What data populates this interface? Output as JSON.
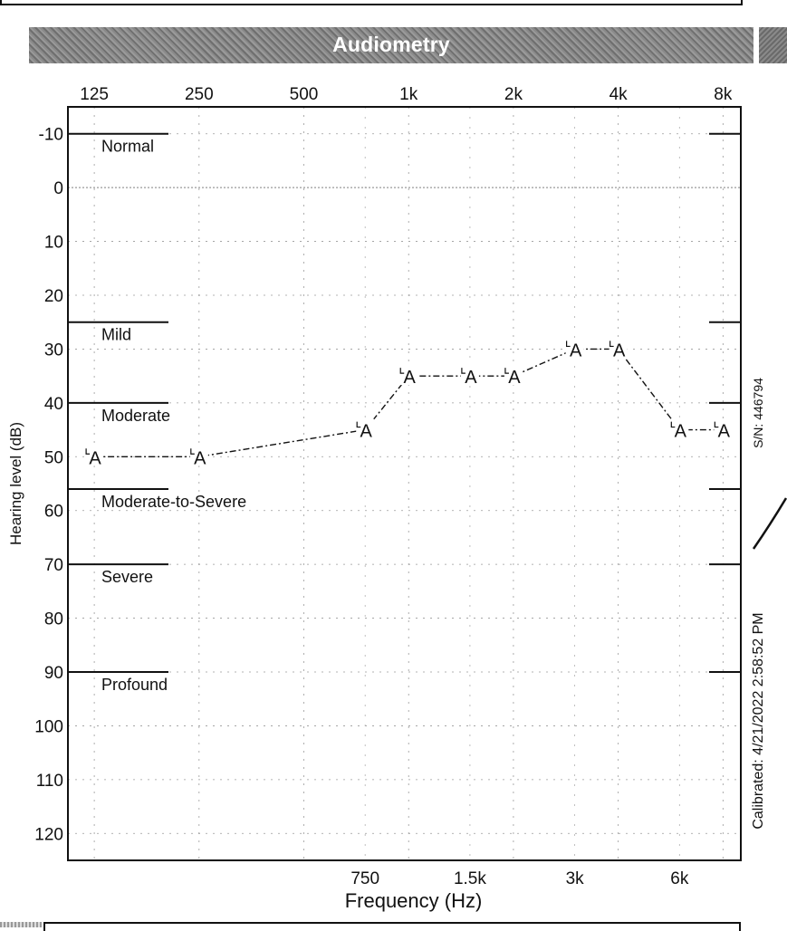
{
  "banner": {
    "title": "Audiometry"
  },
  "side_labels": {
    "serial": "S/N: 446794",
    "calibrated": "Calibrated: 4/21/2022 2:58:52 PM"
  },
  "chart_data": {
    "type": "line",
    "title": "Audiometry",
    "xlabel": "Frequency (Hz)",
    "ylabel": "Hearing level (dB)",
    "x_scale": "log",
    "xlim": [
      105,
      9000
    ],
    "ylim": [
      -15,
      125
    ],
    "y_inverted": true,
    "x_ticks_top": [
      {
        "hz": 125,
        "label": "125"
      },
      {
        "hz": 250,
        "label": "250"
      },
      {
        "hz": 500,
        "label": "500"
      },
      {
        "hz": 1000,
        "label": "1k"
      },
      {
        "hz": 2000,
        "label": "2k"
      },
      {
        "hz": 4000,
        "label": "4k"
      },
      {
        "hz": 8000,
        "label": "8k"
      }
    ],
    "x_ticks_bottom": [
      {
        "hz": 750,
        "label": "750"
      },
      {
        "hz": 1500,
        "label": "1.5k"
      },
      {
        "hz": 3000,
        "label": "3k"
      },
      {
        "hz": 6000,
        "label": "6k"
      }
    ],
    "y_ticks": [
      -10,
      0,
      10,
      20,
      30,
      40,
      50,
      60,
      70,
      80,
      90,
      100,
      110,
      120
    ],
    "grid": true,
    "hearing_ranges": [
      {
        "label": "Normal",
        "level": -10
      },
      {
        "label": "Mild",
        "level": 25
      },
      {
        "label": "Moderate",
        "level": 40
      },
      {
        "label": "Moderate-to-Severe",
        "level": 56
      },
      {
        "label": "Severe",
        "level": 70
      },
      {
        "label": "Profound",
        "level": 90
      }
    ],
    "series": [
      {
        "marker": "A",
        "line_style": "dash-dot",
        "color": "#111111",
        "x": [
          125,
          250,
          750,
          1000,
          1500,
          2000,
          3000,
          4000,
          6000,
          8000
        ],
        "y": [
          50,
          50,
          45,
          35,
          35,
          35,
          30,
          30,
          45,
          45
        ]
      }
    ]
  }
}
